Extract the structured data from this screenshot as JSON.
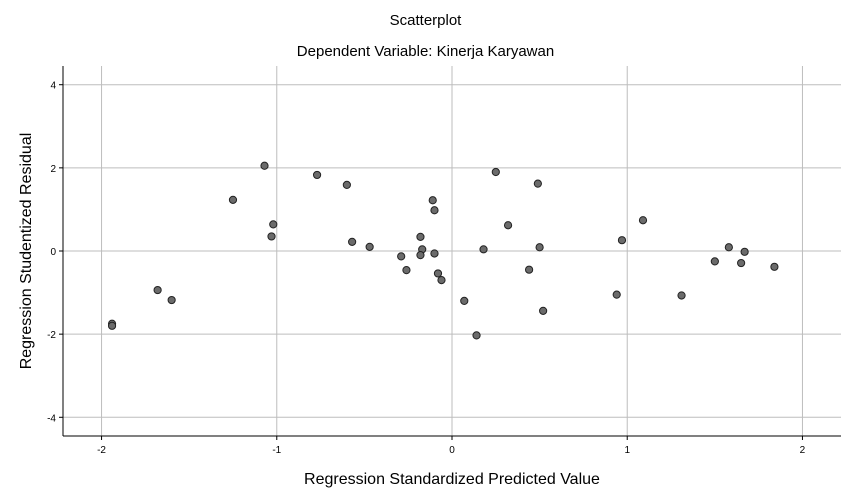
{
  "chart_data": {
    "type": "scatter",
    "title": "Scatterplot",
    "subtitle": "Dependent Variable: Kinerja Karyawan",
    "xlabel": "Regression Standardized Predicted Value",
    "ylabel": "Regression Studentized Residual",
    "xlim": [
      -2.22,
      2.22
    ],
    "ylim": [
      -4.45,
      4.45
    ],
    "xticks": [
      -2,
      -1,
      0,
      1,
      2
    ],
    "yticks": [
      -4,
      -2,
      0,
      2,
      4
    ],
    "grid": true,
    "point_color": "#6b6b6b",
    "points": [
      {
        "x": -1.94,
        "y": -1.75
      },
      {
        "x": -1.94,
        "y": -1.8
      },
      {
        "x": -1.68,
        "y": -0.94
      },
      {
        "x": -1.6,
        "y": -1.18
      },
      {
        "x": -1.25,
        "y": 1.23
      },
      {
        "x": -1.07,
        "y": 2.05
      },
      {
        "x": -1.02,
        "y": 0.64
      },
      {
        "x": -1.03,
        "y": 0.35
      },
      {
        "x": -0.77,
        "y": 1.83
      },
      {
        "x": -0.6,
        "y": 1.59
      },
      {
        "x": -0.57,
        "y": 0.22
      },
      {
        "x": -0.47,
        "y": 0.1
      },
      {
        "x": -0.29,
        "y": -0.13
      },
      {
        "x": -0.26,
        "y": -0.46
      },
      {
        "x": -0.18,
        "y": 0.34
      },
      {
        "x": -0.17,
        "y": 0.04
      },
      {
        "x": -0.18,
        "y": -0.1
      },
      {
        "x": -0.11,
        "y": 1.22
      },
      {
        "x": -0.1,
        "y": 0.98
      },
      {
        "x": -0.1,
        "y": -0.06
      },
      {
        "x": -0.08,
        "y": -0.54
      },
      {
        "x": -0.06,
        "y": -0.7
      },
      {
        "x": 0.07,
        "y": -1.2
      },
      {
        "x": 0.14,
        "y": -2.03
      },
      {
        "x": 0.18,
        "y": 0.04
      },
      {
        "x": 0.25,
        "y": 1.9
      },
      {
        "x": 0.32,
        "y": 0.62
      },
      {
        "x": 0.44,
        "y": -0.45
      },
      {
        "x": 0.49,
        "y": 1.62
      },
      {
        "x": 0.5,
        "y": 0.09
      },
      {
        "x": 0.52,
        "y": -1.44
      },
      {
        "x": 0.94,
        "y": -1.05
      },
      {
        "x": 0.97,
        "y": 0.26
      },
      {
        "x": 1.09,
        "y": 0.74
      },
      {
        "x": 1.31,
        "y": -1.07
      },
      {
        "x": 1.5,
        "y": -0.25
      },
      {
        "x": 1.58,
        "y": 0.09
      },
      {
        "x": 1.65,
        "y": -0.29
      },
      {
        "x": 1.67,
        "y": -0.02
      },
      {
        "x": 1.84,
        "y": -0.38
      }
    ]
  }
}
